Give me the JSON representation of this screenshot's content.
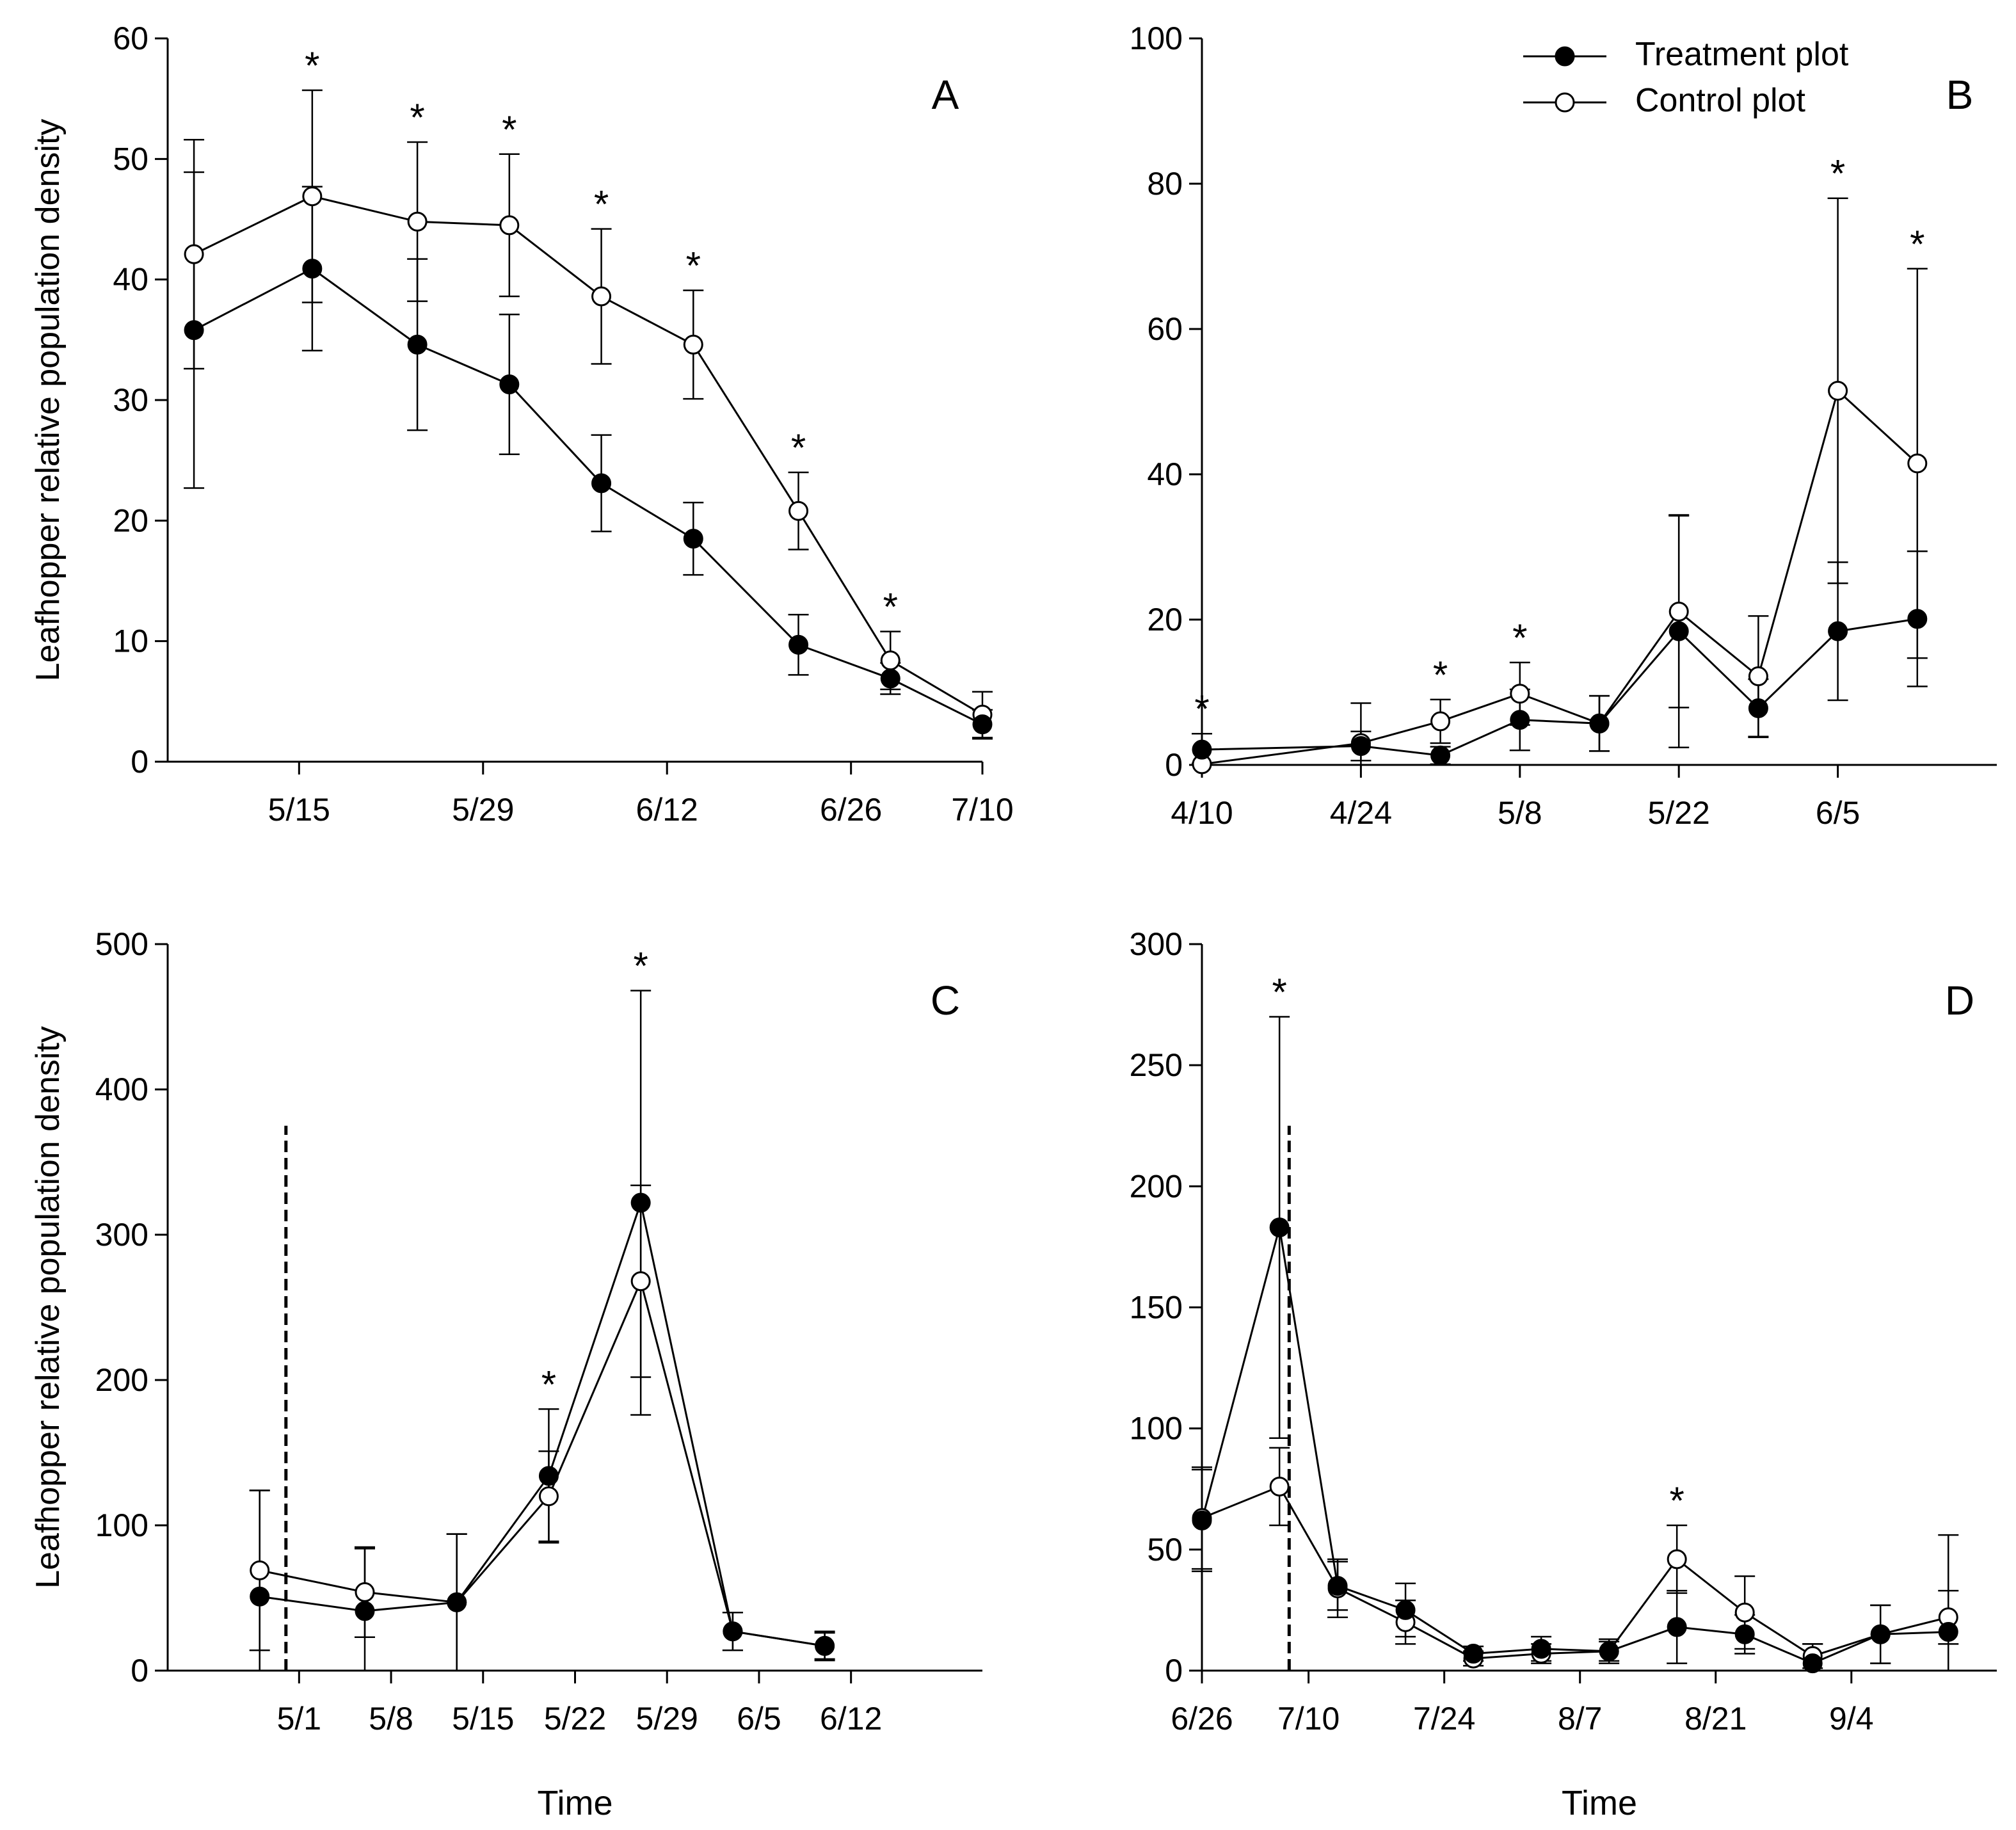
{
  "legend": {
    "treatment_label": "Treatment plot",
    "control_label": "Control plot",
    "placement": "top-right of panel B"
  },
  "chart_data": [
    {
      "id": "A",
      "type": "line",
      "panel_label": "A",
      "xlabel": "",
      "ylabel": "Leafhopper relative population density",
      "xlim": [
        0,
        62
      ],
      "ylim": [
        0,
        60
      ],
      "x_tick_labels": [
        "5/15",
        "5/29",
        "6/12",
        "6/26",
        "7/10"
      ],
      "x_tick_values": [
        10,
        24,
        38,
        52,
        66
      ],
      "y_ticks": [
        0,
        10,
        20,
        30,
        40,
        50,
        60
      ],
      "x_dates": [
        "5/8",
        "5/17",
        "5/25",
        "6/1",
        "6/8",
        "6/15",
        "6/23",
        "6/30",
        "7/7"
      ],
      "series": [
        {
          "name": "Treatment plot",
          "marker": "filled",
          "x": [
            2,
            11,
            19,
            26,
            33,
            40,
            48,
            55,
            62
          ],
          "values": [
            35.8,
            40.9,
            34.6,
            31.3,
            23.1,
            18.5,
            9.7,
            6.9,
            3.1
          ],
          "err": [
            13.1,
            6.8,
            7.1,
            5.8,
            4.0,
            3.0,
            2.5,
            1.3,
            1.2
          ]
        },
        {
          "name": "Control plot",
          "marker": "open",
          "x": [
            2,
            11,
            19,
            26,
            33,
            40,
            48,
            55,
            62
          ],
          "values": [
            42.1,
            46.9,
            44.8,
            44.5,
            38.6,
            34.6,
            20.8,
            8.4,
            3.9
          ],
          "err": [
            9.5,
            8.8,
            6.6,
            5.9,
            5.6,
            4.5,
            3.2,
            2.4,
            1.9
          ]
        }
      ],
      "significant_x": [
        11,
        19,
        26,
        33,
        40,
        48,
        55
      ]
    },
    {
      "id": "B",
      "type": "line",
      "panel_label": "B",
      "xlabel": "",
      "ylabel": "",
      "xlim": [
        0,
        70
      ],
      "ylim": [
        0,
        100
      ],
      "x_tick_labels": [
        "4/10",
        "4/24",
        "5/8",
        "5/22",
        "6/5"
      ],
      "x_tick_values": [
        0,
        14,
        28,
        42,
        56
      ],
      "y_ticks": [
        0,
        20,
        40,
        60,
        80,
        100
      ],
      "x_dates": [
        "4/10",
        "4/24",
        "5/1",
        "5/8",
        "5/15",
        "5/22",
        "5/29",
        "6/5",
        "6/12"
      ],
      "series": [
        {
          "name": "Treatment plot",
          "marker": "filled",
          "x": [
            0,
            14,
            21,
            28,
            35,
            42,
            49,
            56,
            63
          ],
          "values": [
            2.1,
            2.6,
            1.3,
            6.2,
            5.7,
            18.4,
            7.8,
            18.4,
            20.1
          ],
          "err": [
            2.2,
            2.0,
            1.2,
            4.2,
            3.8,
            16.0,
            4.0,
            9.5,
            9.3
          ]
        },
        {
          "name": "Control plot",
          "marker": "open",
          "x": [
            0,
            14,
            21,
            28,
            35,
            42,
            49,
            56,
            63
          ],
          "values": [
            0.1,
            3.0,
            6.0,
            9.8,
            5.7,
            21.1,
            12.2,
            51.5,
            41.5
          ],
          "err": [
            0.1,
            5.5,
            3.0,
            4.3,
            3.8,
            13.2,
            8.3,
            26.5,
            26.8
          ]
        }
      ],
      "significant_x": [
        0,
        21,
        28,
        56,
        63
      ]
    },
    {
      "id": "C",
      "type": "line",
      "panel_label": "C",
      "xlabel": "Time",
      "ylabel": "Leafhopper relative population density",
      "xlim": [
        -10,
        52
      ],
      "ylim": [
        0,
        500
      ],
      "x_tick_labels": [
        "5/1",
        "5/8",
        "5/15",
        "5/22",
        "5/29",
        "6/5",
        "6/12"
      ],
      "x_tick_values": [
        0,
        7,
        14,
        21,
        28,
        35,
        42
      ],
      "y_ticks": [
        0,
        100,
        200,
        300,
        400,
        500
      ],
      "vline_x": -1,
      "x_dates": [
        "4/27",
        "5/5",
        "5/12",
        "5/19",
        "5/26",
        "6/2",
        "6/9"
      ],
      "series": [
        {
          "name": "Treatment plot",
          "marker": "filled",
          "x": [
            -3,
            5,
            12,
            19,
            26,
            33,
            40
          ],
          "values": [
            51,
            41,
            47,
            134,
            322,
            27,
            17
          ],
          "err": [
            73,
            43,
            47,
            46,
            146,
            13,
            10
          ]
        },
        {
          "name": "Control plot",
          "marker": "open",
          "x": [
            -3,
            5,
            12,
            19,
            26,
            33,
            40
          ],
          "values": [
            69,
            54,
            47,
            120,
            268,
            27,
            17
          ],
          "err": [
            55,
            31,
            47,
            31,
            66,
            13,
            9
          ]
        }
      ],
      "significant_x": [
        19,
        26
      ]
    },
    {
      "id": "D",
      "type": "line",
      "panel_label": "D",
      "xlabel": "Time",
      "ylabel": "",
      "xlim": [
        -11,
        71
      ],
      "ylim": [
        0,
        300
      ],
      "x_tick_labels": [
        "6/26",
        "7/10",
        "7/24",
        "8/7",
        "8/21",
        "9/4"
      ],
      "x_tick_values": [
        -14,
        0,
        14,
        28,
        42,
        56
      ],
      "y_ticks": [
        0,
        50,
        100,
        150,
        200,
        250,
        300
      ],
      "vline_x": -2,
      "x_dates": [
        "6/29",
        "7/7",
        "7/13",
        "7/20",
        "7/27",
        "8/3",
        "8/10",
        "8/17",
        "8/24",
        "8/31",
        "9/7",
        "9/14"
      ],
      "series": [
        {
          "name": "Treatment plot",
          "marker": "filled",
          "x": [
            -11,
            -3,
            3,
            10,
            17,
            24,
            31,
            38,
            45,
            52,
            59,
            66
          ],
          "values": [
            62,
            183,
            35,
            25,
            7,
            9,
            8,
            18,
            15,
            3,
            15,
            16
          ],
          "err": [
            21,
            87,
            10,
            11,
            3,
            5,
            4,
            15,
            8,
            8,
            12,
            40
          ]
        },
        {
          "name": "Control plot",
          "marker": "open",
          "x": [
            -11,
            -3,
            3,
            10,
            17,
            24,
            31,
            38,
            45,
            52,
            59,
            66
          ],
          "values": [
            63,
            76,
            34,
            20,
            5,
            7,
            8,
            46,
            24,
            6,
            15,
            22
          ],
          "err": [
            21,
            16,
            12,
            9,
            3,
            4,
            5,
            14,
            15,
            5,
            12,
            11
          ]
        }
      ],
      "significant_x": [
        -3,
        38
      ]
    }
  ]
}
